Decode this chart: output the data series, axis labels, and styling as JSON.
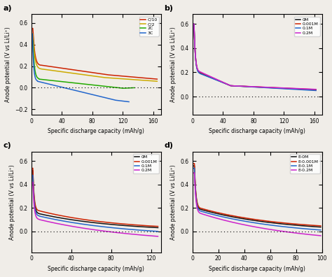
{
  "background": "#f0ede8",
  "panel_a": {
    "legend_labels": [
      "C/10",
      "C/2",
      "2C",
      "3C"
    ],
    "colors": [
      "#cc2200",
      "#ccaa00",
      "#22aa00",
      "#2266cc"
    ],
    "xlim": [
      0,
      170
    ],
    "ylim": [
      -0.25,
      0.68
    ],
    "yticks": [
      -0.2,
      0.0,
      0.2,
      0.4,
      0.6
    ],
    "xticks": [
      0,
      40,
      80,
      120,
      160
    ],
    "xlabel": "Specific discharge capacity (mAh/g)",
    "ylabel": "Anode potential (V vs Li/Li⁺)"
  },
  "panel_b": {
    "legend_labels": [
      "0M",
      "0.001M",
      "0.1M",
      "0.2M"
    ],
    "colors": [
      "#111111",
      "#cc2200",
      "#2266cc",
      "#cc22cc"
    ],
    "xlim": [
      0,
      170
    ],
    "ylim": [
      -0.15,
      0.68
    ],
    "yticks": [
      0.0,
      0.2,
      0.4,
      0.6
    ],
    "xticks": [
      0,
      40,
      80,
      120,
      160
    ],
    "xlabel": "Specific discharge capacity (mAh/g)",
    "ylabel": "Anode potential (V vs Li/Li⁺)"
  },
  "panel_c": {
    "legend_labels": [
      "0M",
      "0.001M",
      "0.1M",
      "0.2M"
    ],
    "colors": [
      "#111111",
      "#cc2200",
      "#2266cc",
      "#cc22cc"
    ],
    "xlim": [
      0,
      130
    ],
    "ylim": [
      -0.18,
      0.68
    ],
    "yticks": [
      0.0,
      0.2,
      0.4,
      0.6
    ],
    "xticks": [
      0,
      40,
      80,
      120
    ],
    "xlabel": "Specific discharge capacity (mAh/g)",
    "ylabel": "Anode potential (V vs Li/Li⁺)"
  },
  "panel_d": {
    "legend_labels": [
      "E-0M",
      "E-0.001M",
      "E-0.1M",
      "E-0.2M"
    ],
    "colors": [
      "#111111",
      "#cc2200",
      "#2266cc",
      "#cc22cc"
    ],
    "xlim": [
      0,
      100
    ],
    "ylim": [
      -0.18,
      0.68
    ],
    "yticks": [
      0.0,
      0.2,
      0.4,
      0.6
    ],
    "xticks": [
      0,
      20,
      40,
      60,
      80,
      100
    ],
    "xlabel": "Specific discharge capacity (mAh/g)",
    "ylabel": "Anode potential (V vs Li/Li⁺)"
  }
}
